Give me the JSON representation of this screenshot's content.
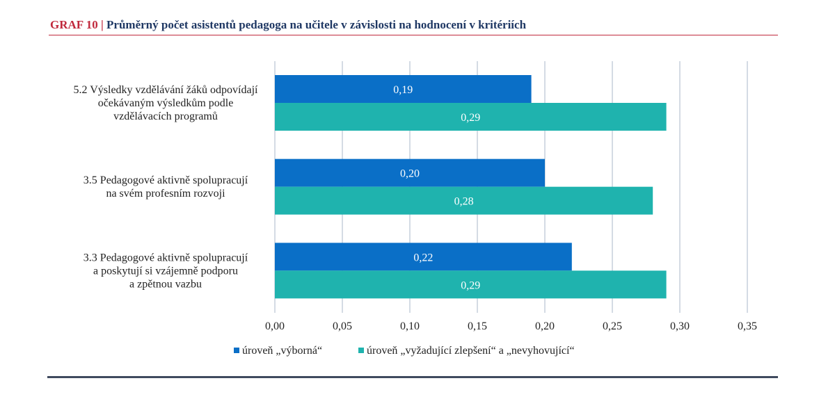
{
  "header": {
    "label": "GRAF 10",
    "separator": "|",
    "title": "Průměrný počet asistentů pedagoga na učitele v závislosti na hodnocení v kritériích"
  },
  "colors": {
    "series_1": "#0a6fc7",
    "series_2": "#1fb3ae",
    "gridline": "#b7c3d3",
    "header_label": "#c0283c",
    "header_text": "#1f3864",
    "footer_rule": "#3f4a5e"
  },
  "chart_data": {
    "type": "bar",
    "orientation": "horizontal",
    "categories": [
      [
        "5.2 Výsledky vzdělávání žáků odpovídají",
        "očekávaným výsledkům podle",
        "vzdělávacích programů"
      ],
      [
        "3.5 Pedagogové aktivně spolupracují",
        "na svém profesním rozvoji"
      ],
      [
        "3.3 Pedagogové aktivně spolupracují",
        "a poskytují si vzájemně podporu",
        "a zpětnou vazbu"
      ]
    ],
    "series": [
      {
        "name": "úroveň „výborná“",
        "values": [
          0.19,
          0.2,
          0.22
        ],
        "labels": [
          "0,19",
          "0,20",
          "0,22"
        ]
      },
      {
        "name": "úroveň „vyžadující zlepšení“ a „nevyhovující“",
        "values": [
          0.29,
          0.28,
          0.29
        ],
        "labels": [
          "0,29",
          "0,28",
          "0,29"
        ]
      }
    ],
    "xlim": [
      0,
      0.35
    ],
    "xticks": [
      0,
      0.05,
      0.1,
      0.15,
      0.2,
      0.25,
      0.3,
      0.35
    ],
    "xtick_labels": [
      "0,00",
      "0,05",
      "0,10",
      "0,15",
      "0,20",
      "0,25",
      "0,30",
      "0,35"
    ],
    "grid": true,
    "legend_position": "bottom",
    "xlabel": "",
    "ylabel": ""
  }
}
